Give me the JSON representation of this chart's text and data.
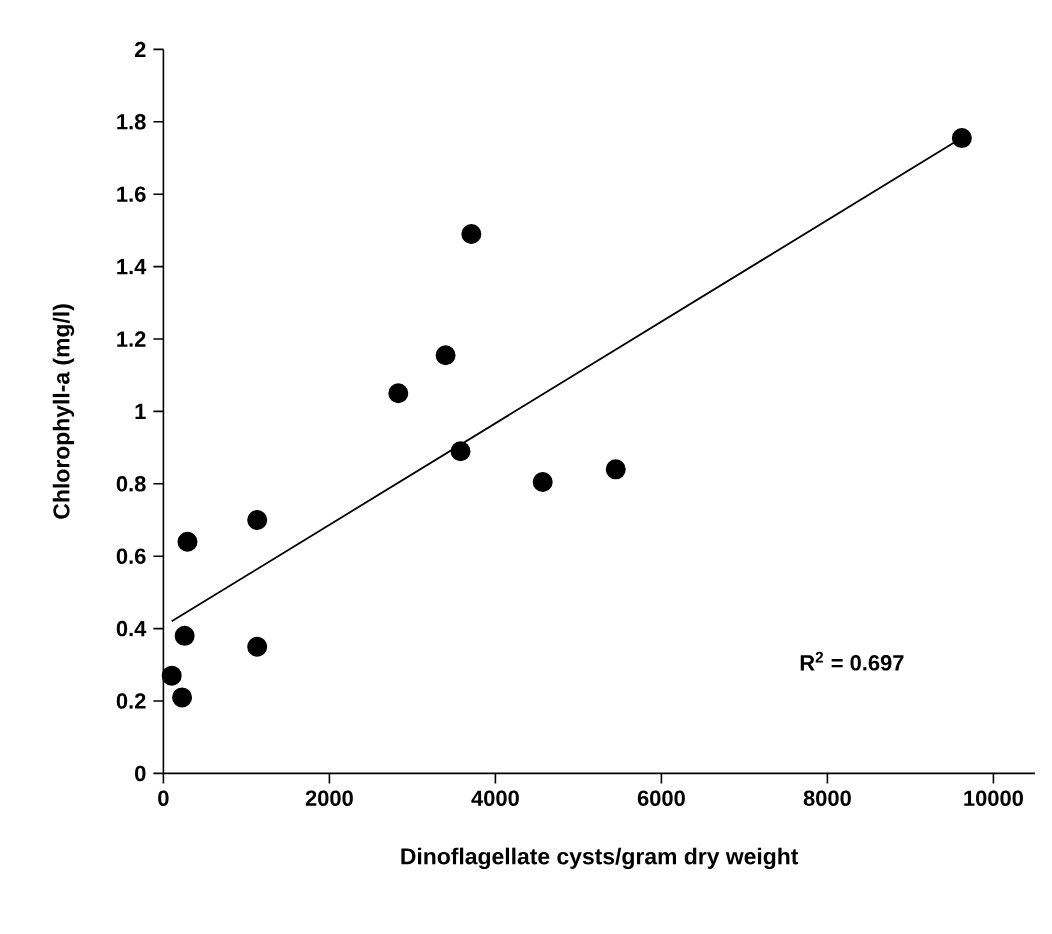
{
  "chart_data": {
    "type": "scatter",
    "xlabel": "Dinoflagellate cysts/gram dry weight",
    "ylabel": "Chlorophyll-a (mg/l)",
    "annotations": [
      "R$^{2}$ = 0.697"
    ],
    "xlim": [
      0,
      10500
    ],
    "xticks": [
      0,
      2000,
      4000,
      6000,
      8000,
      10000
    ],
    "ylim": [
      0,
      2
    ],
    "yticks": [
      0,
      0.2,
      0.4,
      0.6,
      0.8,
      1,
      1.2,
      1.4,
      1.6,
      1.8,
      2
    ],
    "series": [
      {
        "color": "#000000",
        "marker": "circle",
        "x": [
          100,
          225,
          256,
          290,
          1130,
          1130,
          2830,
          3400,
          3710,
          3580,
          4570,
          5450,
          9620
        ],
        "values": [
          0.27,
          0.21,
          0.38,
          0.64,
          0.7,
          0.35,
          1.05,
          1.155,
          1.49,
          0.89,
          0.805,
          0.84,
          1.755
        ]
      },
      {
        "type": "line",
        "color": "#000000",
        "marker": "none",
        "x": [
          100,
          9650
        ],
        "values": [
          0.42,
          1.76
        ]
      }
    ]
  }
}
